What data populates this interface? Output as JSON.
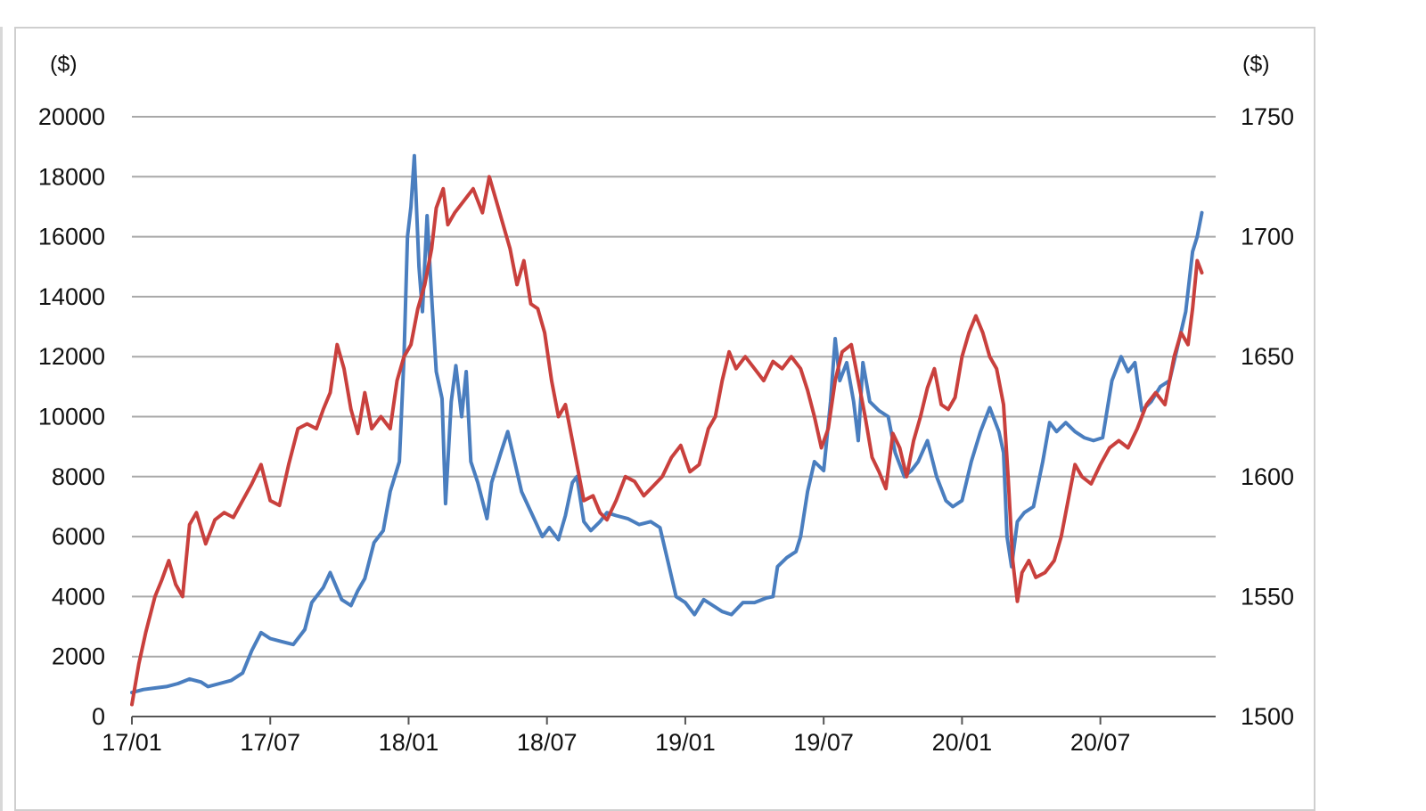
{
  "chart_data": {
    "type": "line",
    "title": "",
    "left_axis": {
      "unit_label": "($)",
      "ylim": [
        0,
        20000
      ],
      "ticks": [
        "0",
        "2000",
        "4000",
        "6000",
        "8000",
        "10000",
        "12000",
        "14000",
        "16000",
        "18000",
        "20000"
      ]
    },
    "right_axis": {
      "unit_label": "($)",
      "ylim": [
        1500,
        1750
      ],
      "ticks": [
        "1500",
        "1550",
        "1600",
        "1650",
        "1700",
        "1750"
      ]
    },
    "x_axis": {
      "range": [
        0,
        47
      ],
      "ticks": [
        {
          "label": "17/01",
          "month": 0
        },
        {
          "label": "17/07",
          "month": 6
        },
        {
          "label": "18/01",
          "month": 12
        },
        {
          "label": "18/07",
          "month": 18
        },
        {
          "label": "19/01",
          "month": 24
        },
        {
          "label": "19/07",
          "month": 30
        },
        {
          "label": "20/01",
          "month": 36
        },
        {
          "label": "20/07",
          "month": 42
        }
      ]
    },
    "grid": true,
    "legend": "none",
    "series": [
      {
        "axis": "left",
        "color": "#4a7ebf",
        "points": [
          [
            0,
            800
          ],
          [
            0.5,
            900
          ],
          [
            1,
            950
          ],
          [
            1.5,
            1000
          ],
          [
            2,
            1100
          ],
          [
            2.5,
            1250
          ],
          [
            3,
            1150
          ],
          [
            3.3,
            1000
          ],
          [
            3.8,
            1100
          ],
          [
            4.3,
            1200
          ],
          [
            4.8,
            1450
          ],
          [
            5.2,
            2200
          ],
          [
            5.6,
            2800
          ],
          [
            6,
            2600
          ],
          [
            6.5,
            2500
          ],
          [
            7,
            2400
          ],
          [
            7.5,
            2900
          ],
          [
            7.8,
            3800
          ],
          [
            8.3,
            4300
          ],
          [
            8.6,
            4800
          ],
          [
            9.1,
            3900
          ],
          [
            9.5,
            3700
          ],
          [
            9.8,
            4200
          ],
          [
            10.1,
            4600
          ],
          [
            10.5,
            5800
          ],
          [
            10.9,
            6200
          ],
          [
            11.2,
            7500
          ],
          [
            11.6,
            8500
          ],
          [
            11.8,
            12000
          ],
          [
            11.95,
            16000
          ],
          [
            12.1,
            17000
          ],
          [
            12.25,
            18700
          ],
          [
            12.45,
            15000
          ],
          [
            12.6,
            13500
          ],
          [
            12.8,
            16700
          ],
          [
            13,
            14000
          ],
          [
            13.2,
            11500
          ],
          [
            13.45,
            10600
          ],
          [
            13.6,
            7100
          ],
          [
            13.85,
            10500
          ],
          [
            14.05,
            11700
          ],
          [
            14.3,
            10000
          ],
          [
            14.5,
            11500
          ],
          [
            14.7,
            8500
          ],
          [
            15,
            7800
          ],
          [
            15.2,
            7200
          ],
          [
            15.4,
            6600
          ],
          [
            15.6,
            7800
          ],
          [
            16,
            8800
          ],
          [
            16.3,
            9500
          ],
          [
            16.6,
            8500
          ],
          [
            16.9,
            7500
          ],
          [
            17.2,
            7000
          ],
          [
            17.5,
            6500
          ],
          [
            17.8,
            6000
          ],
          [
            18.1,
            6300
          ],
          [
            18.5,
            5900
          ],
          [
            18.8,
            6700
          ],
          [
            19.1,
            7800
          ],
          [
            19.3,
            8000
          ],
          [
            19.6,
            6500
          ],
          [
            19.9,
            6200
          ],
          [
            20.3,
            6500
          ],
          [
            20.6,
            6800
          ],
          [
            21,
            6700
          ],
          [
            21.5,
            6600
          ],
          [
            22,
            6400
          ],
          [
            22.5,
            6500
          ],
          [
            22.9,
            6300
          ],
          [
            23.3,
            5000
          ],
          [
            23.6,
            4000
          ],
          [
            24,
            3800
          ],
          [
            24.4,
            3400
          ],
          [
            24.8,
            3900
          ],
          [
            25.2,
            3700
          ],
          [
            25.6,
            3500
          ],
          [
            26,
            3400
          ],
          [
            26.5,
            3800
          ],
          [
            27,
            3800
          ],
          [
            27.5,
            3950
          ],
          [
            27.8,
            4000
          ],
          [
            28,
            5000
          ],
          [
            28.4,
            5300
          ],
          [
            28.8,
            5500
          ],
          [
            29,
            6000
          ],
          [
            29.3,
            7500
          ],
          [
            29.6,
            8500
          ],
          [
            30,
            8200
          ],
          [
            30.3,
            10500
          ],
          [
            30.5,
            12600
          ],
          [
            30.7,
            11200
          ],
          [
            31,
            11800
          ],
          [
            31.3,
            10500
          ],
          [
            31.5,
            9200
          ],
          [
            31.7,
            11800
          ],
          [
            32,
            10500
          ],
          [
            32.4,
            10200
          ],
          [
            32.8,
            10000
          ],
          [
            33.1,
            8800
          ],
          [
            33.5,
            8000
          ],
          [
            33.8,
            8200
          ],
          [
            34.1,
            8500
          ],
          [
            34.5,
            9200
          ],
          [
            34.9,
            8000
          ],
          [
            35.3,
            7200
          ],
          [
            35.6,
            7000
          ],
          [
            36,
            7200
          ],
          [
            36.4,
            8500
          ],
          [
            36.8,
            9500
          ],
          [
            37.2,
            10300
          ],
          [
            37.6,
            9500
          ],
          [
            37.8,
            8800
          ],
          [
            37.95,
            6000
          ],
          [
            38.15,
            5000
          ],
          [
            38.4,
            6500
          ],
          [
            38.7,
            6800
          ],
          [
            39.1,
            7000
          ],
          [
            39.5,
            8500
          ],
          [
            39.8,
            9800
          ],
          [
            40.1,
            9500
          ],
          [
            40.5,
            9800
          ],
          [
            40.9,
            9500
          ],
          [
            41.3,
            9300
          ],
          [
            41.7,
            9200
          ],
          [
            42.1,
            9300
          ],
          [
            42.5,
            11200
          ],
          [
            42.9,
            12000
          ],
          [
            43.2,
            11500
          ],
          [
            43.5,
            11800
          ],
          [
            43.8,
            10200
          ],
          [
            44.2,
            10500
          ],
          [
            44.6,
            11000
          ],
          [
            45,
            11200
          ],
          [
            45.4,
            12500
          ],
          [
            45.7,
            13500
          ],
          [
            46,
            15500
          ],
          [
            46.2,
            16000
          ],
          [
            46.4,
            16800
          ]
        ]
      },
      {
        "axis": "right",
        "color": "#c9403d",
        "points": [
          [
            0,
            1505
          ],
          [
            0.3,
            1522
          ],
          [
            0.6,
            1535
          ],
          [
            1,
            1550
          ],
          [
            1.3,
            1557
          ],
          [
            1.6,
            1565
          ],
          [
            1.9,
            1555
          ],
          [
            2.2,
            1550
          ],
          [
            2.5,
            1580
          ],
          [
            2.8,
            1585
          ],
          [
            3.2,
            1572
          ],
          [
            3.6,
            1582
          ],
          [
            4,
            1585
          ],
          [
            4.4,
            1583
          ],
          [
            4.8,
            1590
          ],
          [
            5.2,
            1597
          ],
          [
            5.6,
            1605
          ],
          [
            6,
            1590
          ],
          [
            6.4,
            1588
          ],
          [
            6.8,
            1605
          ],
          [
            7.2,
            1620
          ],
          [
            7.6,
            1622
          ],
          [
            8,
            1620
          ],
          [
            8.3,
            1628
          ],
          [
            8.6,
            1635
          ],
          [
            8.9,
            1655
          ],
          [
            9.2,
            1645
          ],
          [
            9.5,
            1628
          ],
          [
            9.8,
            1618
          ],
          [
            10.1,
            1635
          ],
          [
            10.4,
            1620
          ],
          [
            10.8,
            1625
          ],
          [
            11.2,
            1620
          ],
          [
            11.5,
            1640
          ],
          [
            11.8,
            1650
          ],
          [
            12.1,
            1655
          ],
          [
            12.4,
            1670
          ],
          [
            12.7,
            1680
          ],
          [
            13,
            1695
          ],
          [
            13.2,
            1712
          ],
          [
            13.5,
            1720
          ],
          [
            13.7,
            1705
          ],
          [
            14,
            1710
          ],
          [
            14.4,
            1715
          ],
          [
            14.8,
            1720
          ],
          [
            15.2,
            1710
          ],
          [
            15.5,
            1725
          ],
          [
            15.8,
            1715
          ],
          [
            16.1,
            1705
          ],
          [
            16.4,
            1695
          ],
          [
            16.7,
            1680
          ],
          [
            17,
            1690
          ],
          [
            17.3,
            1672
          ],
          [
            17.6,
            1670
          ],
          [
            17.9,
            1660
          ],
          [
            18.2,
            1640
          ],
          [
            18.5,
            1625
          ],
          [
            18.8,
            1630
          ],
          [
            19.1,
            1615
          ],
          [
            19.3,
            1605
          ],
          [
            19.6,
            1590
          ],
          [
            20,
            1592
          ],
          [
            20.3,
            1585
          ],
          [
            20.6,
            1582
          ],
          [
            21,
            1590
          ],
          [
            21.4,
            1600
          ],
          [
            21.8,
            1598
          ],
          [
            22.2,
            1592
          ],
          [
            22.6,
            1596
          ],
          [
            23,
            1600
          ],
          [
            23.4,
            1608
          ],
          [
            23.8,
            1613
          ],
          [
            24.2,
            1602
          ],
          [
            24.6,
            1605
          ],
          [
            25,
            1620
          ],
          [
            25.3,
            1625
          ],
          [
            25.6,
            1640
          ],
          [
            25.9,
            1652
          ],
          [
            26.2,
            1645
          ],
          [
            26.6,
            1650
          ],
          [
            27,
            1645
          ],
          [
            27.4,
            1640
          ],
          [
            27.8,
            1648
          ],
          [
            28.2,
            1645
          ],
          [
            28.6,
            1650
          ],
          [
            29,
            1645
          ],
          [
            29.3,
            1636
          ],
          [
            29.6,
            1625
          ],
          [
            29.9,
            1612
          ],
          [
            30.2,
            1620
          ],
          [
            30.5,
            1640
          ],
          [
            30.8,
            1652
          ],
          [
            31.2,
            1655
          ],
          [
            31.5,
            1640
          ],
          [
            31.8,
            1625
          ],
          [
            32.1,
            1608
          ],
          [
            32.4,
            1602
          ],
          [
            32.7,
            1595
          ],
          [
            33,
            1618
          ],
          [
            33.3,
            1612
          ],
          [
            33.6,
            1600
          ],
          [
            33.9,
            1615
          ],
          [
            34.2,
            1625
          ],
          [
            34.5,
            1637
          ],
          [
            34.8,
            1645
          ],
          [
            35.1,
            1630
          ],
          [
            35.4,
            1628
          ],
          [
            35.7,
            1633
          ],
          [
            36,
            1650
          ],
          [
            36.3,
            1660
          ],
          [
            36.6,
            1667
          ],
          [
            36.9,
            1660
          ],
          [
            37.2,
            1650
          ],
          [
            37.5,
            1645
          ],
          [
            37.8,
            1630
          ],
          [
            38,
            1600
          ],
          [
            38.2,
            1565
          ],
          [
            38.4,
            1548
          ],
          [
            38.6,
            1560
          ],
          [
            38.9,
            1565
          ],
          [
            39.2,
            1558
          ],
          [
            39.6,
            1560
          ],
          [
            40,
            1565
          ],
          [
            40.3,
            1575
          ],
          [
            40.6,
            1590
          ],
          [
            40.9,
            1605
          ],
          [
            41.2,
            1600
          ],
          [
            41.6,
            1597
          ],
          [
            42,
            1605
          ],
          [
            42.4,
            1612
          ],
          [
            42.8,
            1615
          ],
          [
            43.2,
            1612
          ],
          [
            43.6,
            1620
          ],
          [
            44,
            1630
          ],
          [
            44.4,
            1635
          ],
          [
            44.8,
            1630
          ],
          [
            45.2,
            1650
          ],
          [
            45.5,
            1660
          ],
          [
            45.8,
            1655
          ],
          [
            46,
            1670
          ],
          [
            46.2,
            1690
          ],
          [
            46.4,
            1685
          ]
        ]
      }
    ]
  }
}
